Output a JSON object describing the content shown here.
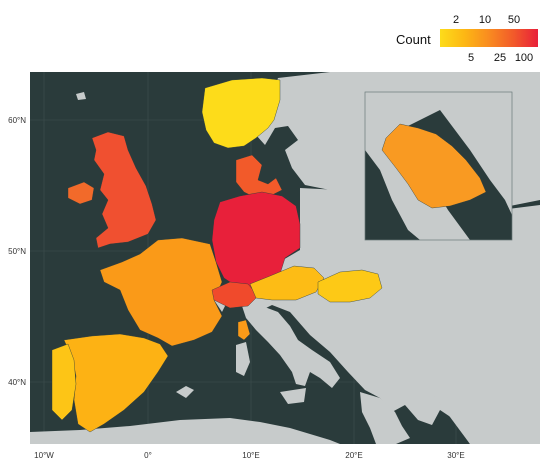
{
  "legend": {
    "title": "Count",
    "top_labels": [
      "2",
      "10",
      "50"
    ],
    "bottom_labels": [
      "5",
      "25",
      "100"
    ],
    "gradient": [
      "#fddc1a",
      "#fdb714",
      "#f98b20",
      "#f25a2a",
      "#e8203a"
    ]
  },
  "axes": {
    "x_ticks": [
      "10°W",
      "0°",
      "10°E",
      "20°E",
      "30°E"
    ],
    "y_ticks": [
      "60°N",
      "50°N",
      "40°N"
    ]
  },
  "colors": {
    "sea": "#2a3b3b",
    "land": "#c7cbcb",
    "grid": "#3f5151"
  },
  "regions": [
    {
      "name": "Norway",
      "level": "2",
      "color": "#fddc1a"
    },
    {
      "name": "Denmark",
      "level": "25",
      "color": "#f25a2a"
    },
    {
      "name": "United Kingdom",
      "level": "50",
      "color": "#f05030"
    },
    {
      "name": "Ireland",
      "level": "25",
      "color": "#f26a2a"
    },
    {
      "name": "Germany",
      "level": "100",
      "color": "#e8203a"
    },
    {
      "name": "France",
      "level": "10",
      "color": "#fa9a18"
    },
    {
      "name": "Spain",
      "level": "5",
      "color": "#fdb214"
    },
    {
      "name": "Portugal",
      "level": "2",
      "color": "#fdc516"
    },
    {
      "name": "Switzerland",
      "level": "50",
      "color": "#f04a2c"
    },
    {
      "name": "Austria",
      "level": "5",
      "color": "#fdbc15"
    },
    {
      "name": "Hungary",
      "level": "2",
      "color": "#fdc916"
    },
    {
      "name": "Corsica",
      "level": "10",
      "color": "#fa9a18"
    },
    {
      "name": "Saudi Arabia",
      "level": "10",
      "color": "#f99a22"
    }
  ]
}
